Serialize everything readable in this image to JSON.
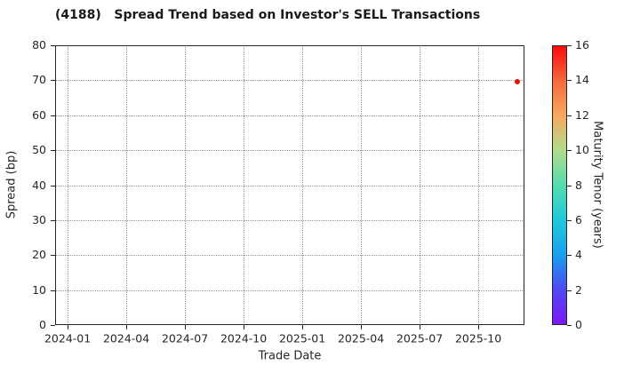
{
  "chart_data": {
    "type": "scatter",
    "title": "(4188)   Spread Trend based on Investor's SELL Transactions",
    "xlabel": "Trade Date",
    "ylabel": "Spread (bp)",
    "x_tick_labels": [
      "2024-01",
      "2024-04",
      "2024-07",
      "2024-10",
      "2025-01",
      "2025-04",
      "2025-07",
      "2025-10"
    ],
    "x_tick_months": [
      0,
      3,
      6,
      9,
      12,
      15,
      18,
      21
    ],
    "xlim_months": [
      -0.64,
      23.36
    ],
    "y_ticks": [
      0,
      10,
      20,
      30,
      40,
      50,
      60,
      70,
      80
    ],
    "ylim": [
      0,
      80
    ],
    "grid": true,
    "grid_style": "dotted",
    "points": [
      {
        "trade_date": "2025-12",
        "x_month": 23.0,
        "spread_bp": 69.7,
        "maturity_tenor_years": 15.5,
        "color": "#e8150e"
      }
    ],
    "colorbar": {
      "label": "Maturity Tenor (years)",
      "min": 0,
      "max": 16,
      "ticks": [
        0,
        2,
        4,
        6,
        8,
        10,
        12,
        14,
        16
      ],
      "colormap": "rainbow",
      "gradient_stops": [
        {
          "value": 0,
          "color": "#7d17f8"
        },
        {
          "value": 2,
          "color": "#4e49f0"
        },
        {
          "value": 4,
          "color": "#19a0ef"
        },
        {
          "value": 6,
          "color": "#1fc9da"
        },
        {
          "value": 8,
          "color": "#55dcae"
        },
        {
          "value": 10,
          "color": "#b0dc8c"
        },
        {
          "value": 12,
          "color": "#f9a95e"
        },
        {
          "value": 14,
          "color": "#f4693c"
        },
        {
          "value": 16,
          "color": "#fa0a0a"
        }
      ]
    },
    "colors": {
      "text": "#262626",
      "grid": "#949494",
      "spine": "#262626",
      "background": "#ffffff"
    }
  }
}
